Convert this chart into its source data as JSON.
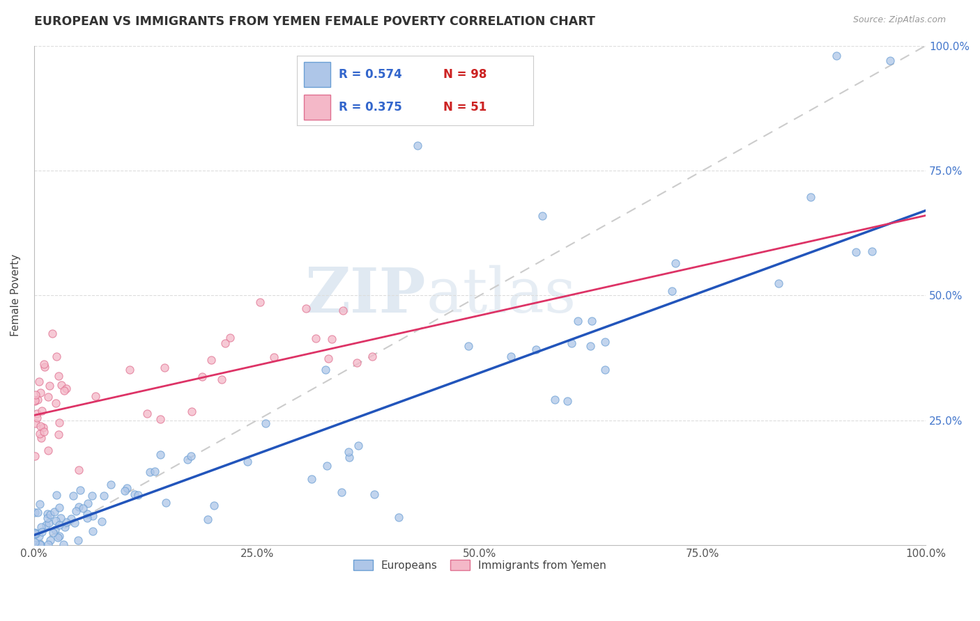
{
  "title": "EUROPEAN VS IMMIGRANTS FROM YEMEN FEMALE POVERTY CORRELATION CHART",
  "source": "Source: ZipAtlas.com",
  "ylabel": "Female Poverty",
  "xlim": [
    0.0,
    1.0
  ],
  "ylim": [
    0.0,
    1.0
  ],
  "xtick_labels": [
    "0.0%",
    "25.0%",
    "50.0%",
    "75.0%",
    "100.0%"
  ],
  "xtick_positions": [
    0.0,
    0.25,
    0.5,
    0.75,
    1.0
  ],
  "ytick_labels": [
    "25.0%",
    "50.0%",
    "75.0%",
    "100.0%"
  ],
  "ytick_positions": [
    0.25,
    0.5,
    0.75,
    1.0
  ],
  "european_color": "#aec6e8",
  "european_edge": "#6b9fd4",
  "yemen_color": "#f4b8c8",
  "yemen_edge": "#e07090",
  "trendline_european_color": "#2255bb",
  "trendline_yemen_color": "#dd3366",
  "trendline_dashed_color": "#cccccc",
  "legend_label1": "Europeans",
  "legend_label2": "Immigrants from Yemen",
  "watermark_zip": "ZIP",
  "watermark_atlas": "atlas",
  "eu_seed": 12,
  "ye_seed": 77
}
